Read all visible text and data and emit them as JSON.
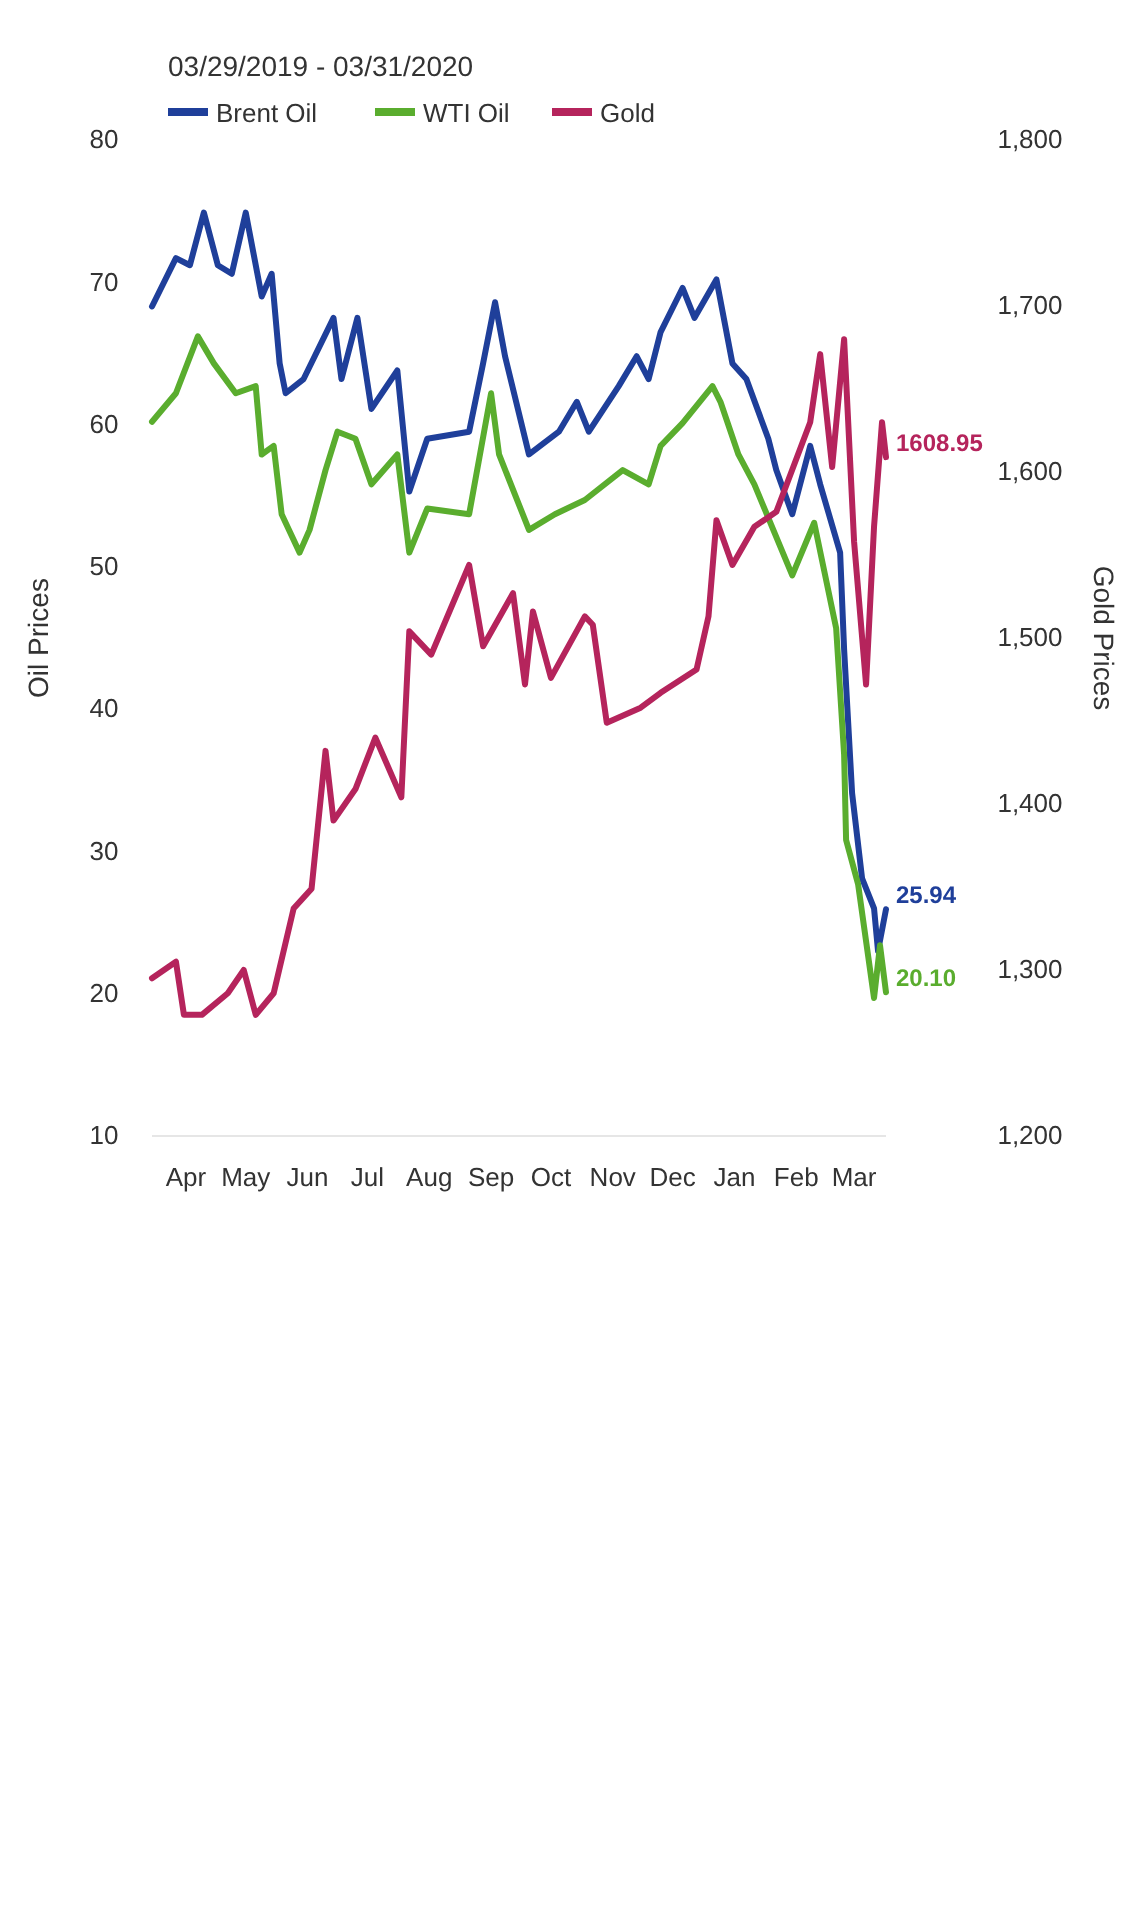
{
  "chart_data": {
    "type": "line",
    "title": "03/29/2019 - 03/31/2020",
    "ylabel": "Oil Prices",
    "y2label": "Gold Prices",
    "xlim": [
      "2019-03-29",
      "2020-03-31"
    ],
    "xticks": [
      {
        "value": "2019-04-15",
        "label": "Apr"
      },
      {
        "value": "2019-05-15",
        "label": "May"
      },
      {
        "value": "2019-06-15",
        "label": "Jun"
      },
      {
        "value": "2019-07-15",
        "label": "Jul"
      },
      {
        "value": "2019-08-15",
        "label": "Aug"
      },
      {
        "value": "2019-09-15",
        "label": "Sep"
      },
      {
        "value": "2019-10-15",
        "label": "Oct"
      },
      {
        "value": "2019-11-15",
        "label": "Nov"
      },
      {
        "value": "2019-12-15",
        "label": "Dec"
      },
      {
        "value": "2020-01-15",
        "label": "Jan"
      },
      {
        "value": "2020-02-15",
        "label": "Feb"
      },
      {
        "value": "2020-03-15",
        "label": "Mar"
      }
    ],
    "ylim": [
      10,
      80
    ],
    "yticks": [
      10,
      20,
      30,
      40,
      50,
      60,
      70,
      80
    ],
    "y2lim": [
      1200,
      1800
    ],
    "y2ticks": [
      {
        "value": 1200,
        "label": "1,200"
      },
      {
        "value": 1300,
        "label": "1,300"
      },
      {
        "value": 1400,
        "label": "1,400"
      },
      {
        "value": 1500,
        "label": "1,500"
      },
      {
        "value": 1600,
        "label": "1,600"
      },
      {
        "value": 1700,
        "label": "1,700"
      },
      {
        "value": 1800,
        "label": "1,800"
      }
    ],
    "legend": "top left",
    "series": [
      {
        "name": "Brent Oil",
        "color": "#1f3f9a",
        "x": [
          "2019-03-29",
          "2019-04-10",
          "2019-04-17",
          "2019-04-24",
          "2019-05-01",
          "2019-05-08",
          "2019-05-15",
          "2019-05-23",
          "2019-05-28",
          "2019-06-01",
          "2019-06-04",
          "2019-06-13",
          "2019-06-28",
          "2019-07-02",
          "2019-07-10",
          "2019-07-17",
          "2019-07-30",
          "2019-08-05",
          "2019-08-14",
          "2019-09-04",
          "2019-09-11",
          "2019-09-17",
          "2019-09-22",
          "2019-10-04",
          "2019-10-19",
          "2019-10-28",
          "2019-11-03",
          "2019-11-18",
          "2019-11-27",
          "2019-12-03",
          "2019-12-09",
          "2019-12-20",
          "2019-12-26",
          "2020-01-06",
          "2020-01-14",
          "2020-01-21",
          "2020-02-01",
          "2020-02-05",
          "2020-02-13",
          "2020-02-22",
          "2020-02-27",
          "2020-03-08",
          "2020-03-10",
          "2020-03-14",
          "2020-03-19",
          "2020-03-25",
          "2020-03-27",
          "2020-03-31"
        ],
        "values": [
          68.3,
          71.7,
          71.2,
          74.9,
          71.2,
          70.6,
          74.9,
          69,
          70.6,
          64.3,
          62.2,
          63.2,
          67.5,
          63.2,
          67.5,
          61.1,
          63.8,
          55.3,
          59,
          59.5,
          64.3,
          68.6,
          64.8,
          57.9,
          59.5,
          61.6,
          59.5,
          62.7,
          64.8,
          63.2,
          66.5,
          69.6,
          67.5,
          70.2,
          64.3,
          63.2,
          59,
          56.8,
          53.7,
          58.5,
          55.8,
          51,
          44.2,
          34.1,
          28.1,
          26,
          23,
          25.94
        ],
        "value_labels": [
          null,
          null,
          null,
          null,
          null,
          null,
          null,
          null,
          null,
          null,
          null,
          null,
          null,
          null,
          null,
          null,
          null,
          null,
          null,
          null,
          null,
          null,
          null,
          null,
          null,
          null,
          null,
          null,
          null,
          null,
          null,
          null,
          null,
          null,
          null,
          null,
          null,
          null,
          null,
          null,
          null,
          null,
          null,
          null,
          null,
          null,
          null,
          "25.94"
        ]
      },
      {
        "name": "WTI Oil",
        "color": "#5aad2e",
        "x": [
          "2019-03-29",
          "2019-04-10",
          "2019-04-21",
          "2019-04-29",
          "2019-05-10",
          "2019-05-20",
          "2019-05-23",
          "2019-05-29",
          "2019-06-02",
          "2019-06-11",
          "2019-06-16",
          "2019-06-24",
          "2019-06-30",
          "2019-07-09",
          "2019-07-17",
          "2019-07-30",
          "2019-08-05",
          "2019-08-14",
          "2019-09-04",
          "2019-09-15",
          "2019-09-19",
          "2019-10-04",
          "2019-10-17",
          "2019-11-01",
          "2019-11-20",
          "2019-12-03",
          "2019-12-09",
          "2019-12-20",
          "2020-01-04",
          "2020-01-08",
          "2020-01-17",
          "2020-01-25",
          "2020-02-13",
          "2020-02-24",
          "2020-03-06",
          "2020-03-10",
          "2020-03-11",
          "2020-03-17",
          "2020-03-25",
          "2020-03-28",
          "2020-03-31"
        ],
        "values": [
          60.2,
          62.2,
          66.2,
          64.3,
          62.2,
          62.7,
          57.9,
          58.5,
          53.7,
          51,
          52.6,
          56.8,
          59.5,
          59,
          55.8,
          57.9,
          51,
          54.1,
          53.7,
          62.2,
          57.9,
          52.6,
          53.7,
          54.7,
          56.8,
          55.8,
          58.5,
          60.1,
          62.7,
          61.6,
          57.9,
          55.8,
          49.4,
          53.1,
          45.7,
          36.8,
          30.8,
          27.7,
          19.7,
          23.4,
          20.1
        ],
        "value_labels": [
          null,
          null,
          null,
          null,
          null,
          null,
          null,
          null,
          null,
          null,
          null,
          null,
          null,
          null,
          null,
          null,
          null,
          null,
          null,
          null,
          null,
          null,
          null,
          null,
          null,
          null,
          null,
          null,
          null,
          null,
          null,
          null,
          null,
          null,
          null,
          null,
          null,
          null,
          null,
          null,
          "20.10"
        ]
      },
      {
        "name": "Gold",
        "color": "#b5245c",
        "axis": "y2",
        "x": [
          "2019-03-29",
          "2019-04-10",
          "2019-04-14",
          "2019-04-23",
          "2019-05-06",
          "2019-05-14",
          "2019-05-20",
          "2019-05-29",
          "2019-06-08",
          "2019-06-17",
          "2019-06-24",
          "2019-06-28",
          "2019-07-09",
          "2019-07-19",
          "2019-08-01",
          "2019-08-05",
          "2019-08-16",
          "2019-09-04",
          "2019-09-11",
          "2019-09-26",
          "2019-10-02",
          "2019-10-06",
          "2019-10-15",
          "2019-11-01",
          "2019-11-05",
          "2019-11-12",
          "2019-11-29",
          "2019-12-09",
          "2019-12-27",
          "2020-01-02",
          "2020-01-06",
          "2020-01-14",
          "2020-01-25",
          "2020-02-05",
          "2020-02-22",
          "2020-02-27",
          "2020-03-04",
          "2020-03-10",
          "2020-03-15",
          "2020-03-21",
          "2020-03-25",
          "2020-03-29",
          "2020-03-31"
        ],
        "values": [
          1295,
          1305,
          1273,
          1273,
          1286,
          1300,
          1273,
          1286,
          1337,
          1349,
          1432,
          1390,
          1409,
          1440,
          1404,
          1504,
          1490,
          1544,
          1495,
          1527,
          1472,
          1516,
          1476,
          1513,
          1508,
          1449,
          1458,
          1467,
          1481,
          1513,
          1571,
          1544,
          1567,
          1576,
          1630,
          1671,
          1603,
          1680,
          1558,
          1472,
          1567,
          1630,
          1608.95
        ],
        "value_labels": [
          null,
          null,
          null,
          null,
          null,
          null,
          null,
          null,
          null,
          null,
          null,
          null,
          null,
          null,
          null,
          null,
          null,
          null,
          null,
          null,
          null,
          null,
          null,
          null,
          null,
          null,
          null,
          null,
          null,
          null,
          null,
          null,
          null,
          null,
          null,
          null,
          null,
          null,
          null,
          null,
          null,
          null,
          "1608.95"
        ]
      }
    ]
  }
}
